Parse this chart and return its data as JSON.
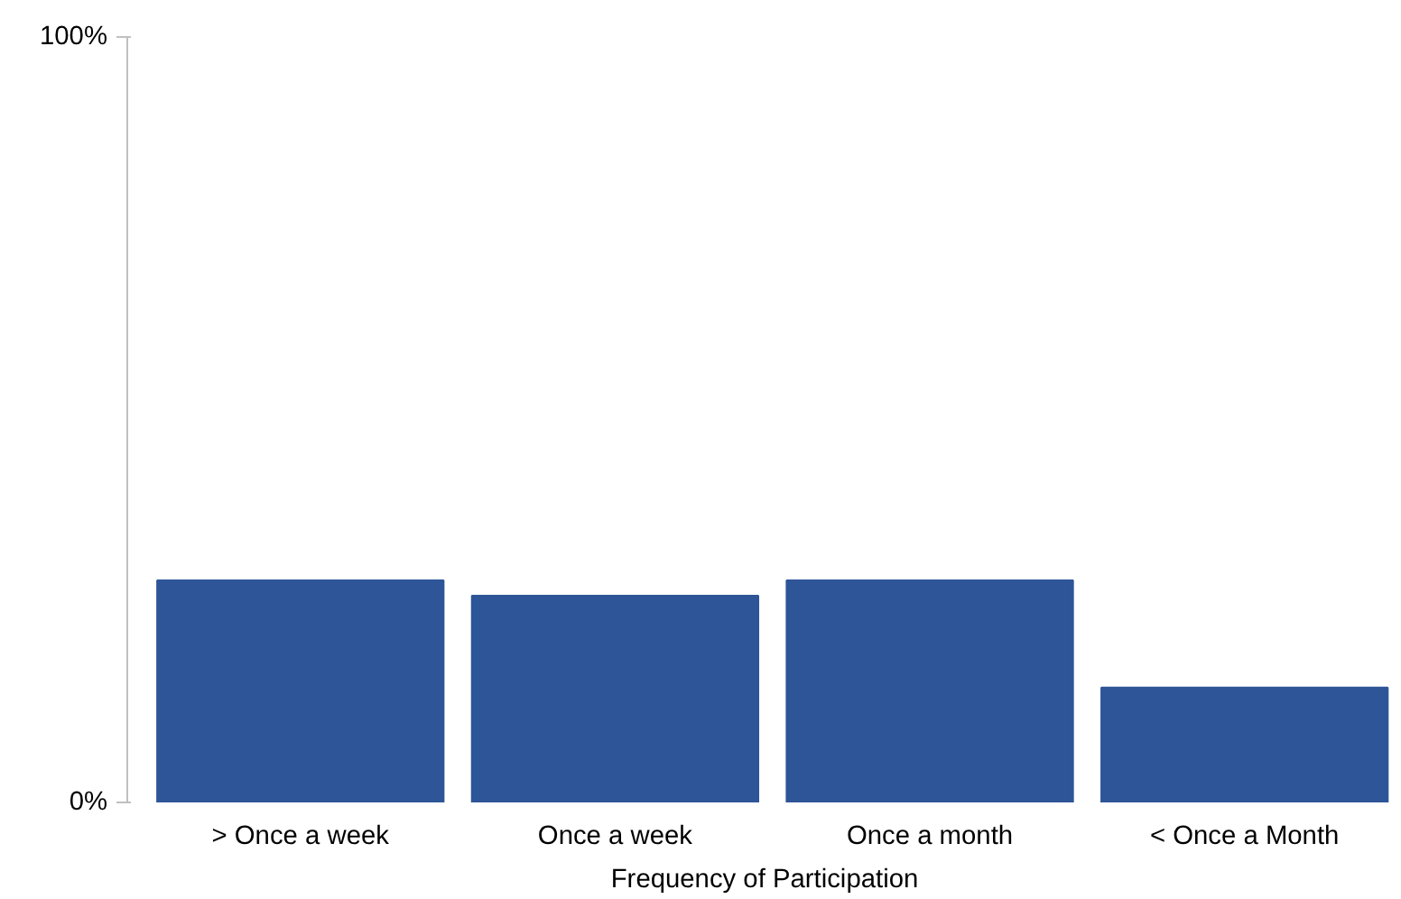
{
  "chart_data": {
    "type": "bar",
    "xlabel": "Frequency of Participation",
    "categories": [
      "> Once a week",
      "Once a week",
      "Once a month",
      "< Once a Month"
    ],
    "values": [
      29,
      27,
      29,
      15
    ],
    "color": "#2e5597",
    "ylim": [
      0,
      100
    ],
    "yticks": [
      {
        "value": 0,
        "label": "0%"
      },
      {
        "value": 100,
        "label": "100%"
      }
    ],
    "grid": false
  }
}
